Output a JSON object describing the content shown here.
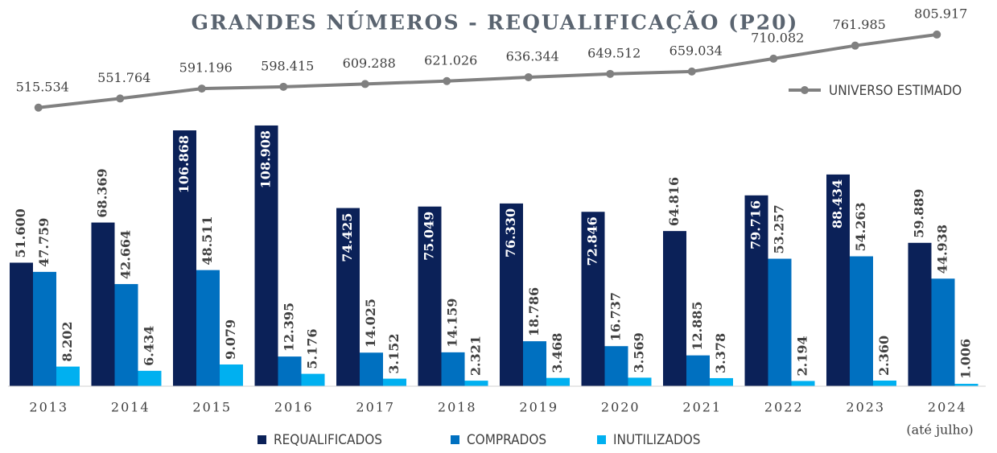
{
  "chart_data": {
    "type": "bar",
    "title": "GRANDES NÚMEROS - REQUALIFICAÇÃO (P20)",
    "categories": [
      "2013",
      "2014",
      "2015",
      "2016",
      "2017",
      "2018",
      "2019",
      "2020",
      "2021",
      "2022",
      "2023",
      "2024"
    ],
    "annotation": "(até julho)",
    "ylim": [
      0,
      110000
    ],
    "y2lim": [
      0,
      900000
    ],
    "series": [
      {
        "name": "REQUALIFICADOS",
        "color": "#0b2158",
        "values": [
          51600,
          68369,
          106868,
          108908,
          74425,
          75049,
          76330,
          72846,
          64816,
          79716,
          88434,
          59889
        ],
        "value_labels": [
          "51.600",
          "68.369",
          "106.868",
          "108.908",
          "74.425",
          "75.049",
          "76.330",
          "72.846",
          "64.816",
          "79.716",
          "88.434",
          "59.889"
        ]
      },
      {
        "name": "COMPRADOS",
        "color": "#0070c0",
        "values": [
          47759,
          42664,
          48511,
          12395,
          14025,
          14159,
          18786,
          16737,
          12885,
          53257,
          54263,
          44938
        ],
        "value_labels": [
          "47.759",
          "42.664",
          "48.511",
          "12.395",
          "14.025",
          "14.159",
          "18.786",
          "16.737",
          "12.885",
          "53.257",
          "54.263",
          "44.938"
        ]
      },
      {
        "name": "INUTILIZADOS",
        "color": "#00b0f0",
        "values": [
          8202,
          6434,
          9079,
          5176,
          3152,
          2321,
          3468,
          3569,
          3378,
          2194,
          2360,
          1006
        ],
        "value_labels": [
          "8.202",
          "6.434",
          "9.079",
          "5.176",
          "3.152",
          "2.321",
          "3.468",
          "3.569",
          "3.378",
          "2.194",
          "2.360",
          "1.006"
        ]
      },
      {
        "name": "UNIVERSO ESTIMADO",
        "color": "#808080",
        "type": "line",
        "axis": "y2",
        "values": [
          515534,
          551764,
          591196,
          598415,
          609288,
          621026,
          636344,
          649512,
          659034,
          710082,
          761985,
          805917
        ],
        "value_labels": [
          "515.534",
          "551.764",
          "591.196",
          "598.415",
          "609.288",
          "621.026",
          "636.344",
          "649.512",
          "659.034",
          "710.082",
          "761.985",
          "805.917"
        ]
      }
    ]
  }
}
